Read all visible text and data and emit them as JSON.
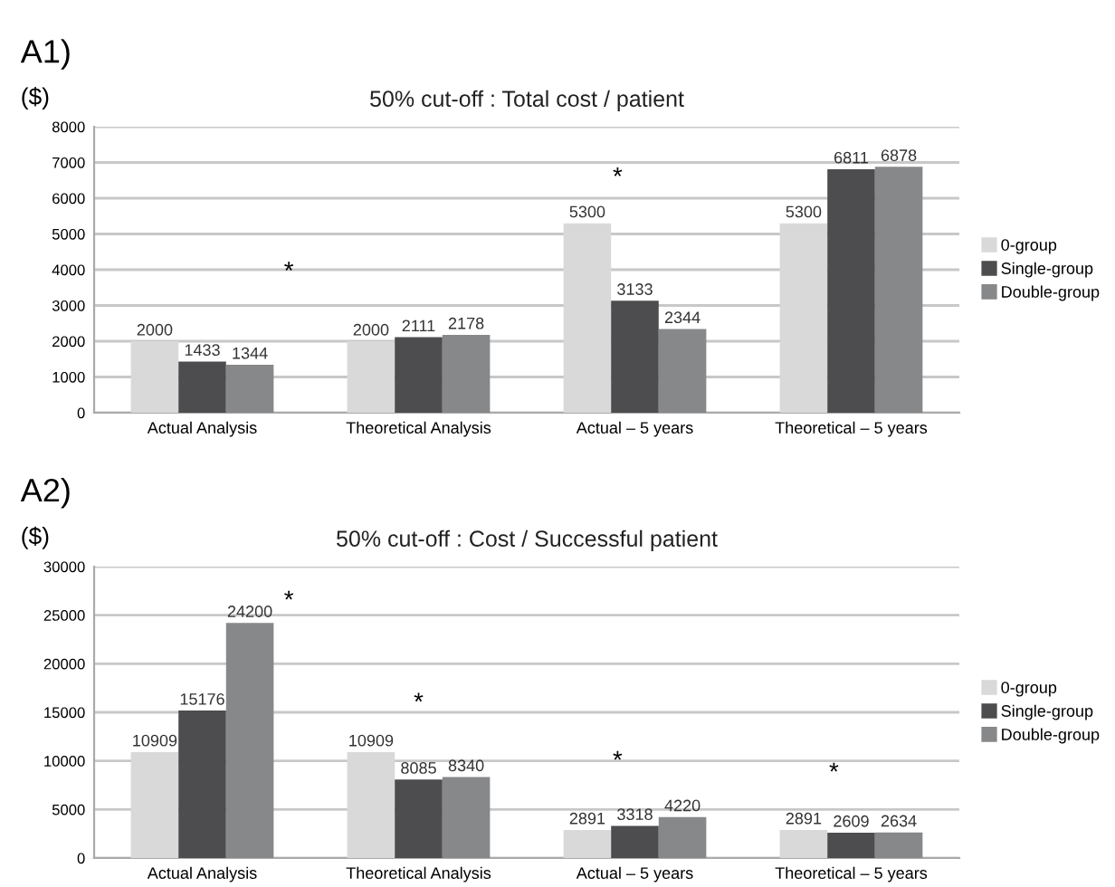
{
  "chart_data": [
    {
      "type": "bar",
      "title": "50% cut-off : Total cost / patient",
      "ylabel": "($)",
      "categories": [
        "Actual Analysis",
        "Theoretical Analysis",
        "Actual – 5 years",
        "Theoretical – 5 years"
      ],
      "series": [
        {
          "name": "0-group",
          "color": "#d9d9d9",
          "values": [
            2000,
            2000,
            5300,
            5300
          ]
        },
        {
          "name": "Single-group",
          "color": "#4d4d4f",
          "values": [
            1433,
            2111,
            3133,
            6811
          ]
        },
        {
          "name": "Double-group",
          "color": "#87888a",
          "values": [
            1344,
            2178,
            2344,
            6878
          ]
        }
      ],
      "ylim": [
        0,
        8000
      ],
      "yticks": [
        0,
        1000,
        2000,
        3000,
        4000,
        5000,
        6000,
        7000,
        8000
      ],
      "grid": "y",
      "legend": "right",
      "data_labels": true,
      "annotations": [
        "A1)",
        "*",
        "*"
      ]
    },
    {
      "type": "bar",
      "title": "50% cut-off : Cost / Successful patient",
      "ylabel": "($)",
      "categories": [
        "Actual Analysis",
        "Theoretical Analysis",
        "Actual – 5 years",
        "Theoretical – 5 years"
      ],
      "series": [
        {
          "name": "0-group",
          "color": "#d9d9d9",
          "values": [
            10909,
            10909,
            2891,
            2891
          ]
        },
        {
          "name": "Single-group",
          "color": "#4d4d4f",
          "values": [
            15176,
            8085,
            3318,
            2609
          ]
        },
        {
          "name": "Double-group",
          "color": "#87888a",
          "values": [
            24200,
            8340,
            4220,
            2634
          ]
        }
      ],
      "ylim": [
        0,
        30000
      ],
      "yticks": [
        0,
        5000,
        10000,
        15000,
        20000,
        25000,
        30000
      ],
      "grid": "y",
      "legend": "right",
      "data_labels": true,
      "annotations": [
        "A2)",
        "*",
        "*",
        "*",
        "*"
      ]
    }
  ]
}
